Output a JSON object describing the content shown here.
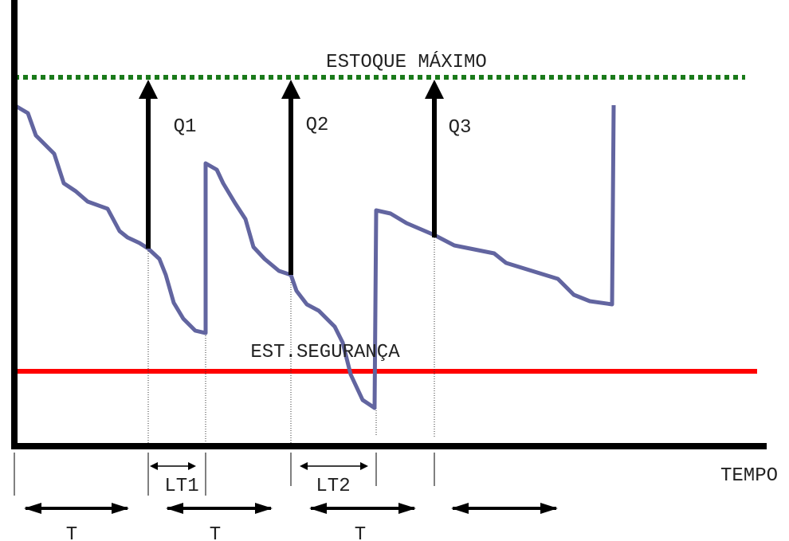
{
  "labels": {
    "max_stock": "ESTOQUE MÁXIMO",
    "safety_stock": "EST.SEGURANÇA",
    "time_axis": "TEMPO",
    "orders": [
      "Q1",
      "Q2",
      "Q3"
    ],
    "lead_times": [
      "LT1",
      "LT2"
    ],
    "periods": [
      "T",
      "T",
      "T"
    ]
  }
}
